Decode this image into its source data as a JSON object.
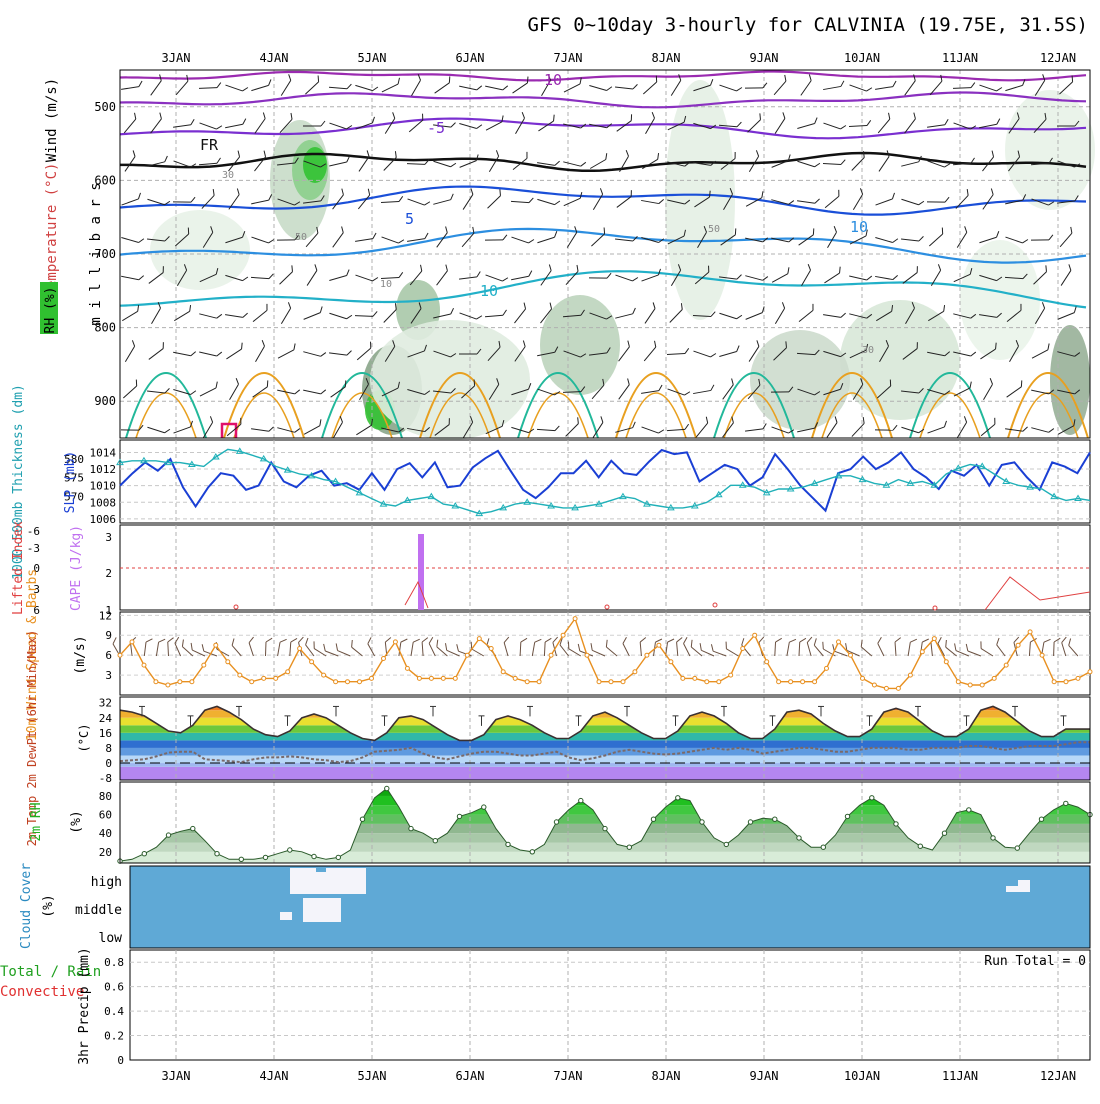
{
  "title": "GFS 0~10day 3-hourly for CALVINIA (19.75E, 31.5S)",
  "chart_data": [
    {
      "type": "heatmap",
      "panel": "upper-air",
      "y_label": "m i l l i b a r s",
      "side_labels": [
        "Wind (m/s)",
        "Temperature (°C)",
        "RH (%)"
      ],
      "y_ticks": [
        500,
        600,
        700,
        800,
        900
      ],
      "ylim": [
        450,
        950
      ],
      "isotherm_labels": [
        "-10",
        "-5",
        "FR",
        "5",
        "10",
        "10"
      ],
      "rh_labels": [
        "30",
        "50",
        "10",
        "50",
        "30"
      ]
    },
    {
      "type": "line",
      "panel": "thickness-slp",
      "left_label": "1000-500mb Thickness (dm)",
      "right_label": "SLP (mb)",
      "left_ticks": [
        580,
        575,
        570
      ],
      "right_ticks": [
        1014,
        1012,
        1010,
        1008,
        1006
      ],
      "series": [
        {
          "name": "SLP",
          "color": "#1a3fd4",
          "values": [
            1010.0,
            1011.5,
            1012.8,
            1011.8,
            1013.2,
            1009.8,
            1007.5,
            1009.8,
            1011.5,
            1011.2,
            1009.5,
            1010.0,
            1012.8,
            1010.5,
            1009.8,
            1011.2,
            1011.8,
            1010.0,
            1010.3,
            1009.5,
            1011.5,
            1009.5,
            1012.0,
            1012.7,
            1011.0,
            1012.8,
            1009.8,
            1010.0,
            1012.2,
            1013.3,
            1014.2,
            1011.8,
            1009.5,
            1008.5,
            1009.8,
            1011.5,
            1011.5,
            1013.0,
            1011.0,
            1013.0,
            1011.5,
            1011.3,
            1012.9,
            1014.3,
            1013.8,
            1014.0,
            1010.5,
            1011.5,
            1012.5,
            1012.0,
            1010.0,
            1011.0,
            1013.8,
            1012.0,
            1010.0,
            1008.5,
            1007.0,
            1011.5,
            1012.0,
            1013.5,
            1012.0,
            1012.8,
            1014.0,
            1012.0,
            1011.0,
            1009.6,
            1011.8,
            1011.2,
            1012.5,
            1010.0,
            1012.5,
            1012.8,
            1011.0,
            1009.5,
            1012.8,
            1012.3,
            1011.5,
            1014.0
          ]
        },
        {
          "name": "Thickness",
          "color": "#20b0b8",
          "values": [
            579.0,
            579.5,
            579.5,
            579.5,
            579.0,
            579.0,
            578.5,
            578.0,
            580.5,
            582.5,
            582.0,
            581.0,
            580.0,
            578.0,
            577.0,
            576.0,
            575.5,
            574.5,
            574.0,
            572.5,
            571.0,
            569.5,
            568.0,
            567.5,
            569.0,
            569.5,
            570.0,
            568.0,
            567.5,
            566.5,
            565.5,
            566.0,
            567.0,
            568.0,
            568.5,
            568.0,
            567.5,
            567.0,
            567.0,
            567.5,
            568.0,
            569.0,
            570.0,
            569.5,
            568.0,
            567.5,
            567.0,
            567.0,
            567.5,
            568.5,
            570.5,
            573.0,
            573.0,
            572.5,
            571.0,
            572.0,
            572.0,
            572.5,
            573.5,
            574.5,
            575.5,
            575.5,
            574.5,
            573.5,
            573.0,
            574.5,
            573.5,
            574.0,
            573.0,
            576.0,
            577.5,
            578.5,
            578.0,
            576.0,
            574.0,
            573.0,
            572.5,
            572.0,
            570.0,
            569.0,
            569.5,
            569.0
          ]
        }
      ]
    },
    {
      "type": "bar",
      "panel": "lifted-cape",
      "left_label": "Lifted Index",
      "right_label": "CAPE (J/kg)",
      "left_ticks": [
        "-6",
        "-3",
        "0",
        "3",
        "6"
      ],
      "right_ticks": [
        "3",
        "2",
        "1"
      ],
      "cape_bar": {
        "day_index": 23,
        "value": 3.0
      },
      "lifted_index_notes": "mostly stable; one excursion near 5.5JAN and several near 11.5JAN"
    },
    {
      "type": "line",
      "panel": "wind-10m",
      "left_label": "10m Wind Speed & Barbs",
      "unit_label": "(m/s)",
      "y_ticks": [
        12,
        9,
        6,
        3
      ],
      "ylim": [
        0,
        12
      ],
      "series": [
        {
          "name": "10m Wind Speed",
          "color": "#e89020",
          "values": [
            6.0,
            8.0,
            4.5,
            2.0,
            1.5,
            2.0,
            2.0,
            4.5,
            7.5,
            5.0,
            3.0,
            2.0,
            2.5,
            2.5,
            3.5,
            7.0,
            5.0,
            3.0,
            2.0,
            2.0,
            2.0,
            2.5,
            5.5,
            8.0,
            4.0,
            2.5,
            2.5,
            2.5,
            2.5,
            6.0,
            8.5,
            7.0,
            3.5,
            2.5,
            2.0,
            2.0,
            6.0,
            9.0,
            11.5,
            6.0,
            2.0,
            2.0,
            2.0,
            3.5,
            6.0,
            7.5,
            5.0,
            2.5,
            2.5,
            2.0,
            2.0,
            3.0,
            7.0,
            9.0,
            5.0,
            2.0,
            2.0,
            2.0,
            2.0,
            4.0,
            8.0,
            6.0,
            2.5,
            1.5,
            1.0,
            1.0,
            3.0,
            6.5,
            8.5,
            5.0,
            2.0,
            1.5,
            1.5,
            2.5,
            4.5,
            7.5,
            9.5,
            6.0,
            2.0,
            2.0,
            2.5,
            3.5
          ]
        }
      ]
    },
    {
      "type": "area",
      "panel": "temp-dewpoint",
      "left_label": "2m Temp 2m DewPt (6hr Min/Max)",
      "unit_label": "(°C)",
      "y_ticks": [
        32,
        24,
        16,
        8,
        0,
        -8
      ],
      "ylim": [
        -8,
        34
      ],
      "series": [
        {
          "name": "2m Temp",
          "color": "#3a3030",
          "values": [
            28,
            27,
            25,
            21,
            17,
            16,
            20,
            28,
            30,
            27,
            23,
            18,
            15,
            14,
            17,
            24,
            26,
            24,
            20,
            16,
            13,
            12,
            16,
            24,
            25,
            23,
            19,
            15,
            12,
            12,
            15,
            23,
            25,
            23,
            20,
            16,
            13,
            13,
            17,
            25,
            27,
            24,
            20,
            16,
            13,
            13,
            17,
            25,
            27,
            25,
            21,
            16,
            13,
            13,
            18,
            27,
            28,
            26,
            21,
            17,
            14,
            14,
            18,
            27,
            29,
            27,
            22,
            17,
            14,
            14,
            18,
            28,
            30,
            27,
            22,
            17,
            14,
            14,
            18,
            18,
            18
          ]
        },
        {
          "name": "2m DewPt",
          "color": "#7a6a6a",
          "values": [
            1,
            1.5,
            2,
            3.5,
            5.5,
            6,
            6,
            2,
            1.5,
            1,
            0.5,
            2,
            3,
            3,
            3.5,
            3,
            2,
            1.5,
            0.5,
            1,
            3,
            6,
            6.5,
            7,
            8,
            5,
            3,
            2,
            3.5,
            5,
            6,
            6,
            5,
            4,
            4,
            5,
            6,
            3,
            1.5,
            2.5,
            4,
            6,
            7,
            6,
            5,
            4.5,
            5,
            6,
            7,
            8,
            7,
            8,
            7,
            5,
            6,
            7,
            8,
            8,
            7,
            6,
            6,
            7,
            8,
            8,
            8,
            7,
            7,
            8,
            8,
            8,
            9,
            9,
            8,
            7,
            8,
            9,
            9,
            9,
            10,
            11,
            11
          ]
        }
      ]
    },
    {
      "type": "area",
      "panel": "rh-2m",
      "left_label": "2m RH",
      "unit_label": "(%)",
      "y_ticks": [
        80,
        60,
        40,
        20
      ],
      "ylim": [
        10,
        95
      ],
      "series": [
        {
          "name": "2m RH",
          "color": "#1fb81f",
          "values": [
            10,
            12,
            18,
            25,
            38,
            42,
            45,
            32,
            18,
            12,
            12,
            12,
            14,
            18,
            22,
            20,
            15,
            12,
            14,
            22,
            55,
            78,
            88,
            68,
            45,
            40,
            32,
            40,
            58,
            62,
            68,
            45,
            28,
            22,
            20,
            28,
            52,
            65,
            75,
            65,
            45,
            28,
            25,
            32,
            55,
            68,
            78,
            75,
            52,
            35,
            28,
            38,
            52,
            56,
            55,
            48,
            35,
            25,
            25,
            38,
            58,
            70,
            78,
            70,
            50,
            35,
            26,
            22,
            40,
            62,
            65,
            60,
            35,
            25,
            24,
            40,
            55,
            65,
            72,
            68,
            60
          ]
        }
      ]
    },
    {
      "type": "heatmap",
      "panel": "cloud-cover",
      "left_label": "Cloud Cover",
      "unit_label": "(%)",
      "row_labels": [
        "high",
        "middle",
        "low"
      ]
    },
    {
      "type": "bar",
      "panel": "precip",
      "left_label": "Total / Rain Convective",
      "unit_label": "3hr Precip (mm)",
      "y_ticks": [
        "0.8",
        "0.6",
        "0.4",
        "0.2",
        "0"
      ],
      "ylim": [
        0,
        0.9
      ],
      "run_total_label": "Run Total = 0",
      "values": []
    }
  ],
  "x_ticks": [
    "3JAN",
    "4JAN",
    "5JAN",
    "6JAN",
    "7JAN",
    "8JAN",
    "9JAN",
    "10JAN",
    "11JAN",
    "12JAN"
  ],
  "colors": {
    "rh_green": "#22c022",
    "grid": "#b0b0b0",
    "cloud_blue": "#5fa9d6",
    "temp_fill_top": "#e03a1a",
    "cape": "#c070f0",
    "lifted": "#e04040"
  }
}
